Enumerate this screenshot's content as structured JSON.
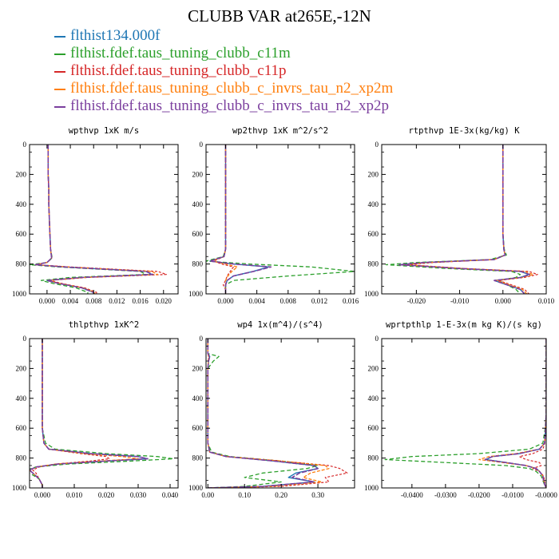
{
  "title": "CLUBB VAR at265E,-12N",
  "legend": [
    {
      "label": "flthist134.000f",
      "color": "#1f77b4"
    },
    {
      "label": "flthist.fdef.taus_tuning_clubb_c11m",
      "color": "#2ca02c"
    },
    {
      "label": "flthist.fdef.taus_tuning_clubb_c11p",
      "color": "#d62728"
    },
    {
      "label": "flthist.fdef.taus_tuning_clubb_c_invrs_tau_n2_xp2m",
      "color": "#ff7f0e"
    },
    {
      "label": "flthist.fdef.taus_tuning_clubb_c_invrs_tau_n2_xp2p",
      "color": "#7b3f9e"
    }
  ],
  "chart_data": [
    {
      "type": "line",
      "title": "wpthvp  1xK m/s",
      "xlim": [
        -0.003,
        0.0225
      ],
      "ylim": [
        1000,
        0
      ],
      "xticks": [
        0.0,
        0.004,
        0.008,
        0.012,
        0.016,
        0.02
      ],
      "xtick_labels": [
        "0.000",
        "0.004",
        "0.008",
        "0.012",
        "0.016",
        "0.020"
      ],
      "yticks": [
        0,
        200,
        400,
        600,
        800,
        1000
      ],
      "ytick_labels": [
        "0",
        "200",
        "400",
        "600",
        "800",
        "1000"
      ],
      "y": [
        0,
        100,
        200,
        300,
        400,
        500,
        600,
        700,
        760,
        790,
        805,
        820,
        850,
        870,
        890,
        910,
        930,
        960,
        990,
        1000
      ],
      "series": [
        {
          "color": "#1f77b4",
          "values": [
            0.0002,
            0.0002,
            0.0002,
            0.0003,
            0.0003,
            0.0004,
            0.0005,
            0.0006,
            0.0008,
            0.0,
            -0.002,
            0.003,
            0.017,
            0.018,
            0.006,
            0.0,
            0.002,
            0.006,
            0.008,
            0.008
          ]
        },
        {
          "color": "#2ca02c",
          "values": [
            0.0002,
            0.0002,
            0.0002,
            0.0003,
            0.0003,
            0.0004,
            0.0005,
            0.0006,
            0.0009,
            0.0,
            -0.003,
            0.002,
            0.016,
            0.017,
            0.004,
            -0.001,
            0.001,
            0.005,
            0.007,
            0.007
          ]
        },
        {
          "color": "#d62728",
          "values": [
            0.0002,
            0.0002,
            0.0002,
            0.0003,
            0.0003,
            0.0004,
            0.0005,
            0.0006,
            0.0008,
            0.0,
            -0.002,
            0.004,
            0.019,
            0.0205,
            0.007,
            0.0005,
            0.0025,
            0.0065,
            0.0085,
            0.0085
          ]
        },
        {
          "color": "#ff7f0e",
          "values": [
            0.0002,
            0.0002,
            0.0002,
            0.0003,
            0.0003,
            0.0004,
            0.0005,
            0.0006,
            0.0008,
            0.0,
            -0.002,
            0.0035,
            0.018,
            0.019,
            0.0065,
            0.0003,
            0.0022,
            0.0062,
            0.0082,
            0.0082
          ]
        },
        {
          "color": "#7b3f9e",
          "values": [
            0.0002,
            0.0002,
            0.0002,
            0.0003,
            0.0003,
            0.0004,
            0.0005,
            0.0006,
            0.0008,
            0.0,
            -0.002,
            0.003,
            0.017,
            0.0182,
            0.006,
            0.0,
            0.002,
            0.006,
            0.008,
            0.008
          ]
        }
      ]
    },
    {
      "type": "line",
      "title": "wp2thvp  1xK m^2/s^2",
      "xlim": [
        -0.0025,
        0.0165
      ],
      "ylim": [
        1000,
        0
      ],
      "xticks": [
        0.0,
        0.004,
        0.008,
        0.012,
        0.016
      ],
      "xtick_labels": [
        "0.000",
        "0.004",
        "0.008",
        "0.012",
        "0.016"
      ],
      "yticks": [
        0,
        200,
        400,
        600,
        800,
        1000
      ],
      "ytick_labels": [
        "0",
        "200",
        "400",
        "600",
        "800",
        "1000"
      ],
      "y": [
        0,
        100,
        200,
        300,
        400,
        500,
        600,
        700,
        750,
        780,
        800,
        820,
        850,
        880,
        910,
        940,
        970,
        1000
      ],
      "series": [
        {
          "color": "#1f77b4",
          "values": [
            0.0,
            0.0,
            0.0,
            0.0,
            0.0,
            0.0,
            0.0,
            0.0,
            -0.0002,
            -0.002,
            0.001,
            0.0055,
            0.0035,
            0.001,
            0.0002,
            0.0,
            0.0,
            0.0
          ]
        },
        {
          "color": "#2ca02c",
          "values": [
            0.0,
            0.0,
            0.0,
            0.0,
            0.0,
            0.0,
            0.0,
            0.0,
            -0.0003,
            -0.0025,
            0.003,
            0.011,
            0.0165,
            0.008,
            0.001,
            0.0,
            0.0,
            0.0
          ]
        },
        {
          "color": "#d62728",
          "values": [
            0.0,
            0.0,
            0.0,
            0.0,
            0.0,
            0.0,
            0.0,
            0.0,
            -0.0002,
            -0.0015,
            -0.0005,
            0.001,
            0.0006,
            0.0002,
            0.0,
            -0.0003,
            0.0,
            0.0
          ]
        },
        {
          "color": "#ff7f0e",
          "values": [
            0.0,
            0.0,
            0.0,
            0.0,
            0.0,
            0.0,
            0.0,
            0.0,
            -0.0002,
            -0.0018,
            0.0,
            0.0015,
            0.0008,
            0.0003,
            0.0,
            0.0,
            0.0,
            0.0
          ]
        },
        {
          "color": "#7b3f9e",
          "values": [
            0.0,
            0.0,
            0.0,
            0.0,
            0.0,
            0.0,
            0.0,
            0.0,
            -0.0002,
            -0.002,
            0.001,
            0.0058,
            0.0036,
            0.001,
            0.0002,
            0.0,
            0.0,
            0.0
          ]
        }
      ]
    },
    {
      "type": "line",
      "title": "rtpthvp  1E-3x(kg/kg) K",
      "xlim": [
        -0.028,
        0.01
      ],
      "ylim": [
        1000,
        0
      ],
      "xticks": [
        -0.02,
        -0.01,
        0.0,
        0.01
      ],
      "xtick_labels": [
        "-0.020",
        "-0.010",
        "0.000",
        "0.010"
      ],
      "yticks": [
        0,
        200,
        400,
        600,
        800,
        1000
      ],
      "ytick_labels": [
        "0",
        "200",
        "400",
        "600",
        "800",
        "1000"
      ],
      "y": [
        0,
        100,
        200,
        300,
        400,
        500,
        600,
        700,
        740,
        770,
        790,
        805,
        830,
        850,
        870,
        890,
        910,
        940,
        970,
        1000
      ],
      "series": [
        {
          "color": "#1f77b4",
          "values": [
            0.0,
            0.0,
            0.0,
            0.0,
            0.0,
            0.0,
            0.0,
            0.0002,
            0.0005,
            -0.002,
            -0.018,
            -0.024,
            -0.01,
            0.004,
            0.006,
            0.004,
            -0.002,
            0.001,
            0.004,
            0.005
          ]
        },
        {
          "color": "#2ca02c",
          "values": [
            0.0,
            0.0,
            0.0,
            0.0,
            0.0,
            0.0,
            0.0,
            0.0003,
            0.0008,
            -0.003,
            -0.02,
            -0.027,
            -0.013,
            0.002,
            0.004,
            0.003,
            -0.001,
            0.001,
            0.003,
            0.004
          ]
        },
        {
          "color": "#d62728",
          "values": [
            0.0,
            0.0,
            0.0,
            0.0,
            0.0,
            0.0,
            0.0,
            0.0002,
            0.0005,
            -0.002,
            -0.016,
            -0.022,
            -0.009,
            0.006,
            0.008,
            0.005,
            -0.001,
            0.002,
            0.005,
            0.006
          ]
        },
        {
          "color": "#ff7f0e",
          "values": [
            0.0,
            0.0,
            0.0,
            0.0,
            0.0,
            0.0,
            0.0,
            0.0002,
            0.0005,
            -0.002,
            -0.017,
            -0.023,
            -0.0095,
            0.005,
            0.007,
            0.0045,
            -0.0015,
            0.0015,
            0.0045,
            0.0055
          ]
        },
        {
          "color": "#7b3f9e",
          "values": [
            0.0,
            0.0,
            0.0,
            0.0,
            0.0,
            0.0,
            0.0,
            0.0002,
            0.0005,
            -0.002,
            -0.018,
            -0.024,
            -0.0102,
            0.0042,
            0.0062,
            0.0042,
            -0.002,
            0.001,
            0.004,
            0.005
          ]
        }
      ]
    },
    {
      "type": "line",
      "title": "thlpthvp  1xK^2",
      "xlim": [
        -0.004,
        0.0425
      ],
      "ylim": [
        1000,
        0
      ],
      "xticks": [
        0.0,
        0.01,
        0.02,
        0.03,
        0.04
      ],
      "xtick_labels": [
        "0.000",
        "0.010",
        "0.020",
        "0.030",
        "0.040"
      ],
      "yticks": [
        0,
        200,
        400,
        600,
        800,
        1000
      ],
      "ytick_labels": [
        "0",
        "200",
        "400",
        "600",
        "800",
        "1000"
      ],
      "y": [
        0,
        100,
        200,
        300,
        400,
        500,
        600,
        700,
        740,
        770,
        790,
        805,
        820,
        840,
        860,
        880,
        900,
        940,
        980,
        1000
      ],
      "series": [
        {
          "color": "#1f77b4",
          "values": [
            0.0,
            0.0,
            0.0,
            0.0,
            0.0,
            0.0,
            0.0,
            0.0005,
            0.002,
            0.015,
            0.03,
            0.033,
            0.02,
            0.005,
            -0.002,
            -0.004,
            -0.003,
            -0.001,
            0.0,
            0.0
          ]
        },
        {
          "color": "#2ca02c",
          "values": [
            0.0,
            0.0,
            0.0,
            0.0,
            0.0,
            0.0,
            0.0,
            0.001,
            0.004,
            0.02,
            0.036,
            0.041,
            0.028,
            0.008,
            -0.002,
            -0.005,
            -0.004,
            -0.001,
            0.0,
            0.0
          ]
        },
        {
          "color": "#d62728",
          "values": [
            0.0,
            0.0,
            0.0,
            0.0,
            0.0,
            0.0,
            0.0,
            0.0005,
            0.002,
            0.012,
            0.02,
            0.021,
            0.015,
            0.004,
            -0.001,
            -0.003,
            -0.002,
            -0.001,
            0.0,
            0.0
          ]
        },
        {
          "color": "#ff7f0e",
          "values": [
            0.0,
            0.0,
            0.0,
            0.0,
            0.0,
            0.0,
            0.0,
            0.0005,
            0.002,
            0.013,
            0.025,
            0.03,
            0.018,
            0.004,
            -0.002,
            -0.004,
            -0.003,
            -0.001,
            0.0,
            0.0
          ]
        },
        {
          "color": "#7b3f9e",
          "values": [
            0.0,
            0.0,
            0.0,
            0.0,
            0.0,
            0.0,
            0.0,
            0.0005,
            0.002,
            0.015,
            0.03,
            0.033,
            0.02,
            0.005,
            -0.002,
            -0.004,
            -0.003,
            -0.001,
            0.0,
            0.0
          ]
        }
      ]
    },
    {
      "type": "line",
      "title": "wp4  1x(m^4)/(s^4)",
      "xlim": [
        -0.005,
        0.4
      ],
      "ylim": [
        1000,
        0
      ],
      "xticks": [
        0.0,
        0.1,
        0.2,
        0.3
      ],
      "xtick_labels": [
        "0.00",
        "0.10",
        "0.20",
        "0.30"
      ],
      "yticks": [
        0,
        200,
        400,
        600,
        800,
        1000
      ],
      "ytick_labels": [
        "0",
        "200",
        "400",
        "600",
        "800",
        "1000"
      ],
      "y": [
        0,
        100,
        120,
        150,
        200,
        300,
        400,
        500,
        600,
        700,
        760,
        790,
        820,
        850,
        870,
        900,
        930,
        960,
        990,
        1000
      ],
      "series": [
        {
          "color": "#1f77b4",
          "values": [
            0.0,
            0.0,
            0.005,
            0.002,
            0.0,
            0.0,
            0.0,
            0.0,
            0.0,
            0.0,
            0.005,
            0.05,
            0.18,
            0.29,
            0.3,
            0.24,
            0.22,
            0.29,
            0.15,
            0.0
          ]
        },
        {
          "color": "#2ca02c",
          "values": [
            0.0,
            0.0,
            0.03,
            0.015,
            0.0,
            0.0,
            0.0,
            0.0,
            0.0,
            0.0,
            0.01,
            0.06,
            0.2,
            0.3,
            0.27,
            0.15,
            0.1,
            0.2,
            0.1,
            0.0
          ]
        },
        {
          "color": "#d62728",
          "values": [
            0.0,
            0.0,
            0.002,
            0.001,
            0.0,
            0.0,
            0.0,
            0.0,
            0.0,
            0.0,
            0.005,
            0.05,
            0.2,
            0.33,
            0.36,
            0.38,
            0.32,
            0.33,
            0.2,
            0.0
          ]
        },
        {
          "color": "#ff7f0e",
          "values": [
            0.0,
            0.0,
            0.003,
            0.001,
            0.0,
            0.0,
            0.0,
            0.0,
            0.0,
            0.0,
            0.005,
            0.05,
            0.2,
            0.32,
            0.33,
            0.28,
            0.26,
            0.31,
            0.17,
            0.0
          ]
        },
        {
          "color": "#7b3f9e",
          "values": [
            0.0,
            0.0,
            0.005,
            0.002,
            0.0,
            0.0,
            0.0,
            0.0,
            0.0,
            0.0,
            0.005,
            0.05,
            0.18,
            0.29,
            0.3,
            0.25,
            0.23,
            0.29,
            0.15,
            0.0
          ]
        }
      ]
    },
    {
      "type": "line",
      "title": "wprtpthlp  1-E-3x(m kg K)/(s kg)",
      "xlim": [
        -0.049,
        0.0
      ],
      "ylim": [
        1000,
        0
      ],
      "xticks": [
        -0.04,
        -0.03,
        -0.02,
        -0.01,
        0.0
      ],
      "xtick_labels": [
        "-0.0400",
        "-0.0300",
        "-0.0200",
        "-0.0100",
        "-0.0000"
      ],
      "yticks": [
        0,
        200,
        400,
        600,
        800,
        1000
      ],
      "ytick_labels": [
        "0",
        "200",
        "400",
        "600",
        "800",
        "1000"
      ],
      "y": [
        0,
        100,
        200,
        300,
        400,
        500,
        600,
        700,
        740,
        770,
        790,
        810,
        830,
        850,
        870,
        890,
        920,
        950,
        980,
        1000
      ],
      "series": [
        {
          "color": "#1f77b4",
          "values": [
            0.0,
            0.0,
            0.0,
            0.0,
            0.0,
            0.0,
            -0.0002,
            -0.0005,
            -0.002,
            -0.008,
            -0.016,
            -0.018,
            -0.012,
            -0.006,
            -0.003,
            -0.002,
            -0.001,
            -0.0008,
            -0.0004,
            0.0
          ]
        },
        {
          "color": "#2ca02c",
          "values": [
            0.0,
            0.0,
            0.0,
            0.0,
            0.0,
            0.0,
            -0.0003,
            -0.001,
            -0.005,
            -0.02,
            -0.04,
            -0.048,
            -0.03,
            -0.012,
            -0.005,
            -0.003,
            -0.0015,
            -0.001,
            -0.0005,
            0.0
          ]
        },
        {
          "color": "#d62728",
          "values": [
            0.0,
            0.0,
            0.0,
            0.0,
            0.0,
            0.0,
            -0.0002,
            -0.0004,
            -0.001,
            -0.004,
            -0.008,
            -0.006,
            -0.002,
            -0.0015,
            -0.004,
            -0.002,
            -0.0008,
            -0.0005,
            -0.0003,
            0.0
          ]
        },
        {
          "color": "#ff7f0e",
          "values": [
            0.0,
            0.0,
            0.0,
            0.0,
            0.0,
            0.0,
            -0.0002,
            -0.0005,
            -0.002,
            -0.009,
            -0.017,
            -0.02,
            -0.013,
            -0.006,
            -0.003,
            -0.002,
            -0.001,
            -0.0008,
            -0.0004,
            0.0
          ]
        },
        {
          "color": "#7b3f9e",
          "values": [
            0.0,
            0.0,
            0.0,
            0.0,
            0.0,
            0.0,
            -0.0002,
            -0.0005,
            -0.002,
            -0.008,
            -0.016,
            -0.0182,
            -0.012,
            -0.006,
            -0.003,
            -0.002,
            -0.001,
            -0.0008,
            -0.0004,
            0.0
          ]
        }
      ]
    }
  ]
}
